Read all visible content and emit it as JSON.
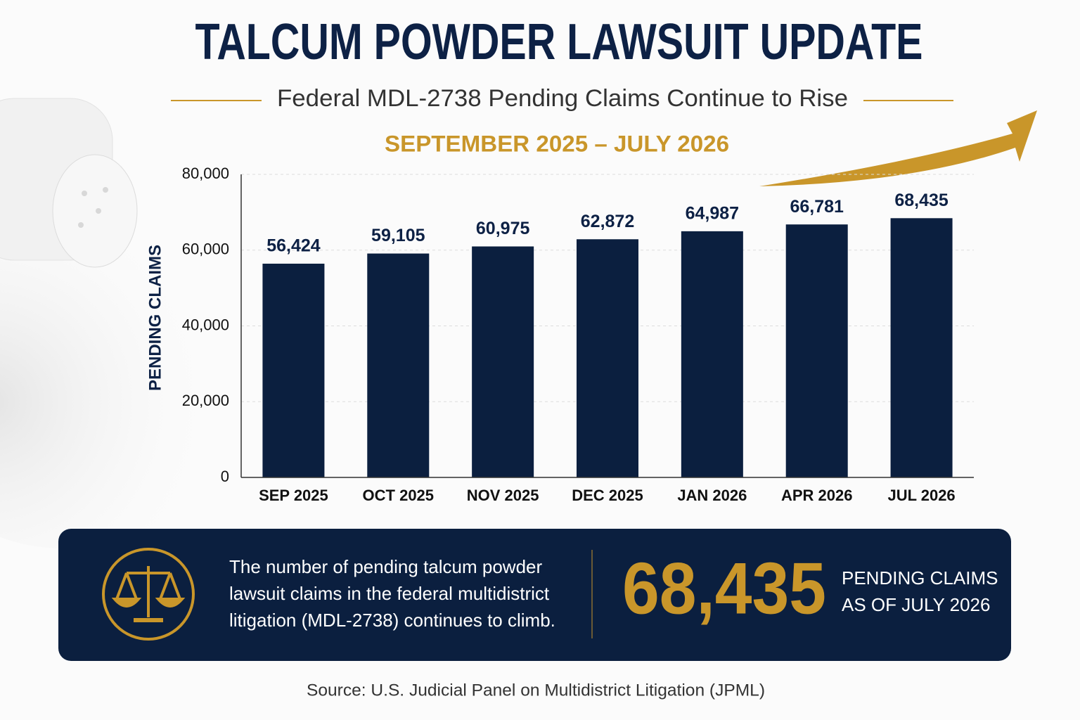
{
  "chart_data": {
    "type": "bar",
    "title": "TALCUM POWDER LAWSUIT UPDATE",
    "subtitle": "Federal MDL-2738 Pending Claims Continue to Rise",
    "date_range": "SEPTEMBER 2025 – JULY 2026",
    "y_label": "PENDING CLAIMS",
    "categories": [
      "SEP 2025",
      "OCT 2025",
      "NOV 2025",
      "DEC 2025",
      "JAN 2026",
      "APR 2026",
      "JUL 2026"
    ],
    "values": [
      56424,
      59105,
      60975,
      62872,
      64987,
      66781,
      68435
    ],
    "value_labels": [
      "56,424",
      "59,105",
      "60,975",
      "62,872",
      "64,987",
      "66,781",
      "68,435"
    ],
    "color": "#0b1f3f",
    "ylim": [
      0,
      80000
    ],
    "yticks": [
      0,
      {
        "value": 20000,
        "label": "20,000"
      },
      {
        "value": 40000,
        "label": "40,000"
      },
      {
        "value": 60000,
        "label": "60,000"
      },
      {
        "value": 80000,
        "label": "80,000"
      }
    ],
    "grid": true
  },
  "callout": {
    "text_lines": [
      "The number of pending talcum powder",
      "lawsuit claims in the federal multidistrict",
      "litigation (MDL-2738) continues to climb."
    ],
    "stat": "68,435",
    "stat_label_lines": [
      "PENDING CLAIMS",
      "AS OF JULY 2026"
    ]
  },
  "source": "Source: U.S. Judicial Panel on Multidistrict Litigation (JPML)"
}
